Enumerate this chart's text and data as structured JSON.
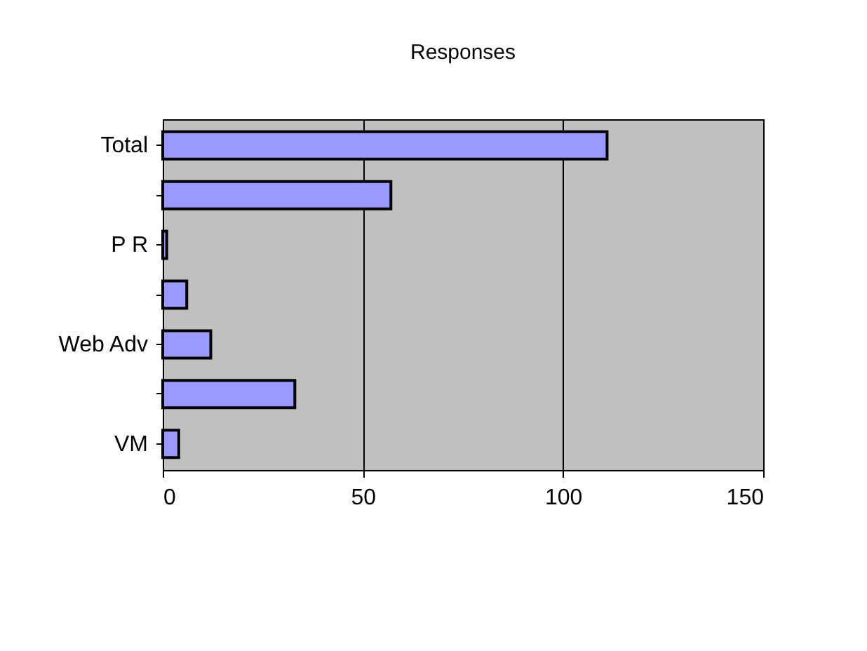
{
  "chart_data": {
    "type": "bar",
    "orientation": "horizontal",
    "title": "Responses",
    "categories": [
      "Total",
      null,
      "P R",
      null,
      "Web Adv",
      null,
      "VM"
    ],
    "values": [
      111,
      57,
      1,
      6,
      12,
      33,
      4
    ],
    "color": "#9999ff",
    "xlim": [
      0,
      150
    ],
    "xticks": [
      0,
      50,
      100,
      150
    ],
    "grid": "x"
  }
}
